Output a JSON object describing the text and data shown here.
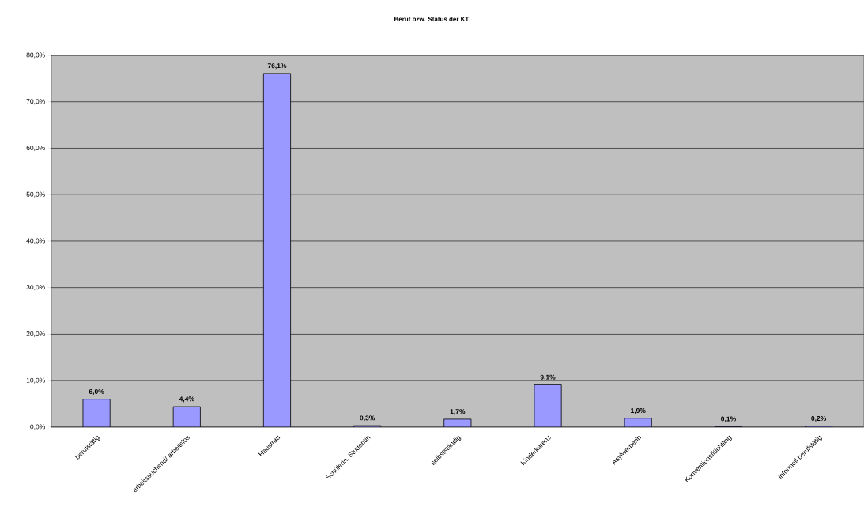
{
  "chart_data": {
    "type": "bar",
    "title": "Beruf bzw. Status der KT",
    "categories": [
      "berufstätig",
      "arbeitssuchend/ arbeitslos",
      "Hausfrau",
      "Schülerin, Studentin",
      "selbstständig",
      "Kinderkarenz",
      "Asylwerberin",
      "Konventionsflüchtling",
      "informell berufstätig"
    ],
    "values": [
      6.0,
      4.4,
      76.1,
      0.3,
      1.7,
      9.1,
      1.9,
      0.1,
      0.2
    ],
    "value_labels": [
      "6,0%",
      "4,4%",
      "76,1%",
      "0,3%",
      "1,7%",
      "9,1%",
      "1,9%",
      "0,1%",
      "0,2%"
    ],
    "color": "#9999ff",
    "ylim": [
      0,
      80
    ],
    "yticks": [
      {
        "value": 0,
        "label": "0,0%"
      },
      {
        "value": 10,
        "label": "10,0%"
      },
      {
        "value": 20,
        "label": "20,0%"
      },
      {
        "value": 30,
        "label": "30,0%"
      },
      {
        "value": 40,
        "label": "40,0%"
      },
      {
        "value": 50,
        "label": "50,0%"
      },
      {
        "value": 60,
        "label": "60,0%"
      },
      {
        "value": 70,
        "label": "70,0%"
      },
      {
        "value": 80,
        "label": "80,0%"
      }
    ],
    "grid": "y"
  }
}
